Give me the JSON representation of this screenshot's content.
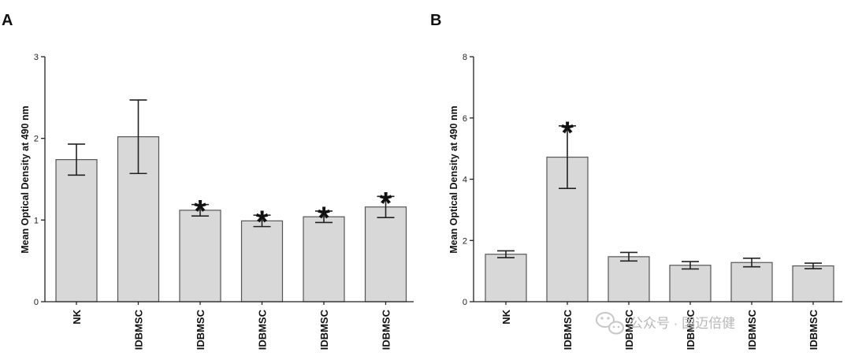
{
  "chart_data": [
    {
      "type": "bar",
      "panel_label": "A",
      "ylabel": "Mean Optical Density at 490 nm",
      "xlabel": "",
      "ylim": [
        0,
        3
      ],
      "yticks": [
        "0",
        "1",
        "2",
        "3"
      ],
      "categories": [
        "NK",
        "IDBMSC",
        "IDBMSC",
        "IDBMSC",
        "IDBMSC",
        "IDBMSC"
      ],
      "values": [
        1.74,
        2.02,
        1.12,
        0.99,
        1.04,
        1.16
      ],
      "errors": [
        0.19,
        0.45,
        0.07,
        0.07,
        0.07,
        0.13
      ],
      "significant": [
        false,
        false,
        true,
        true,
        true,
        true
      ],
      "significance_marker": "*"
    },
    {
      "type": "bar",
      "panel_label": "B",
      "ylabel": "Mean Optical Density at 490 nm",
      "xlabel": "",
      "ylim": [
        0,
        8
      ],
      "yticks": [
        "0",
        "2",
        "4",
        "6",
        "8"
      ],
      "categories": [
        "NK",
        "IDBMSC",
        "IDBMSC",
        "IDBMSC",
        "IDBMSC",
        "IDBMSC"
      ],
      "values": [
        1.55,
        4.72,
        1.47,
        1.19,
        1.28,
        1.17
      ],
      "errors": [
        0.11,
        1.02,
        0.14,
        0.12,
        0.14,
        0.09
      ],
      "significant": [
        false,
        true,
        false,
        false,
        false,
        false
      ],
      "significance_marker": "*"
    }
  ],
  "watermark": {
    "text": "公众号 · 国迈倍健",
    "icon": "wechat-icon"
  }
}
